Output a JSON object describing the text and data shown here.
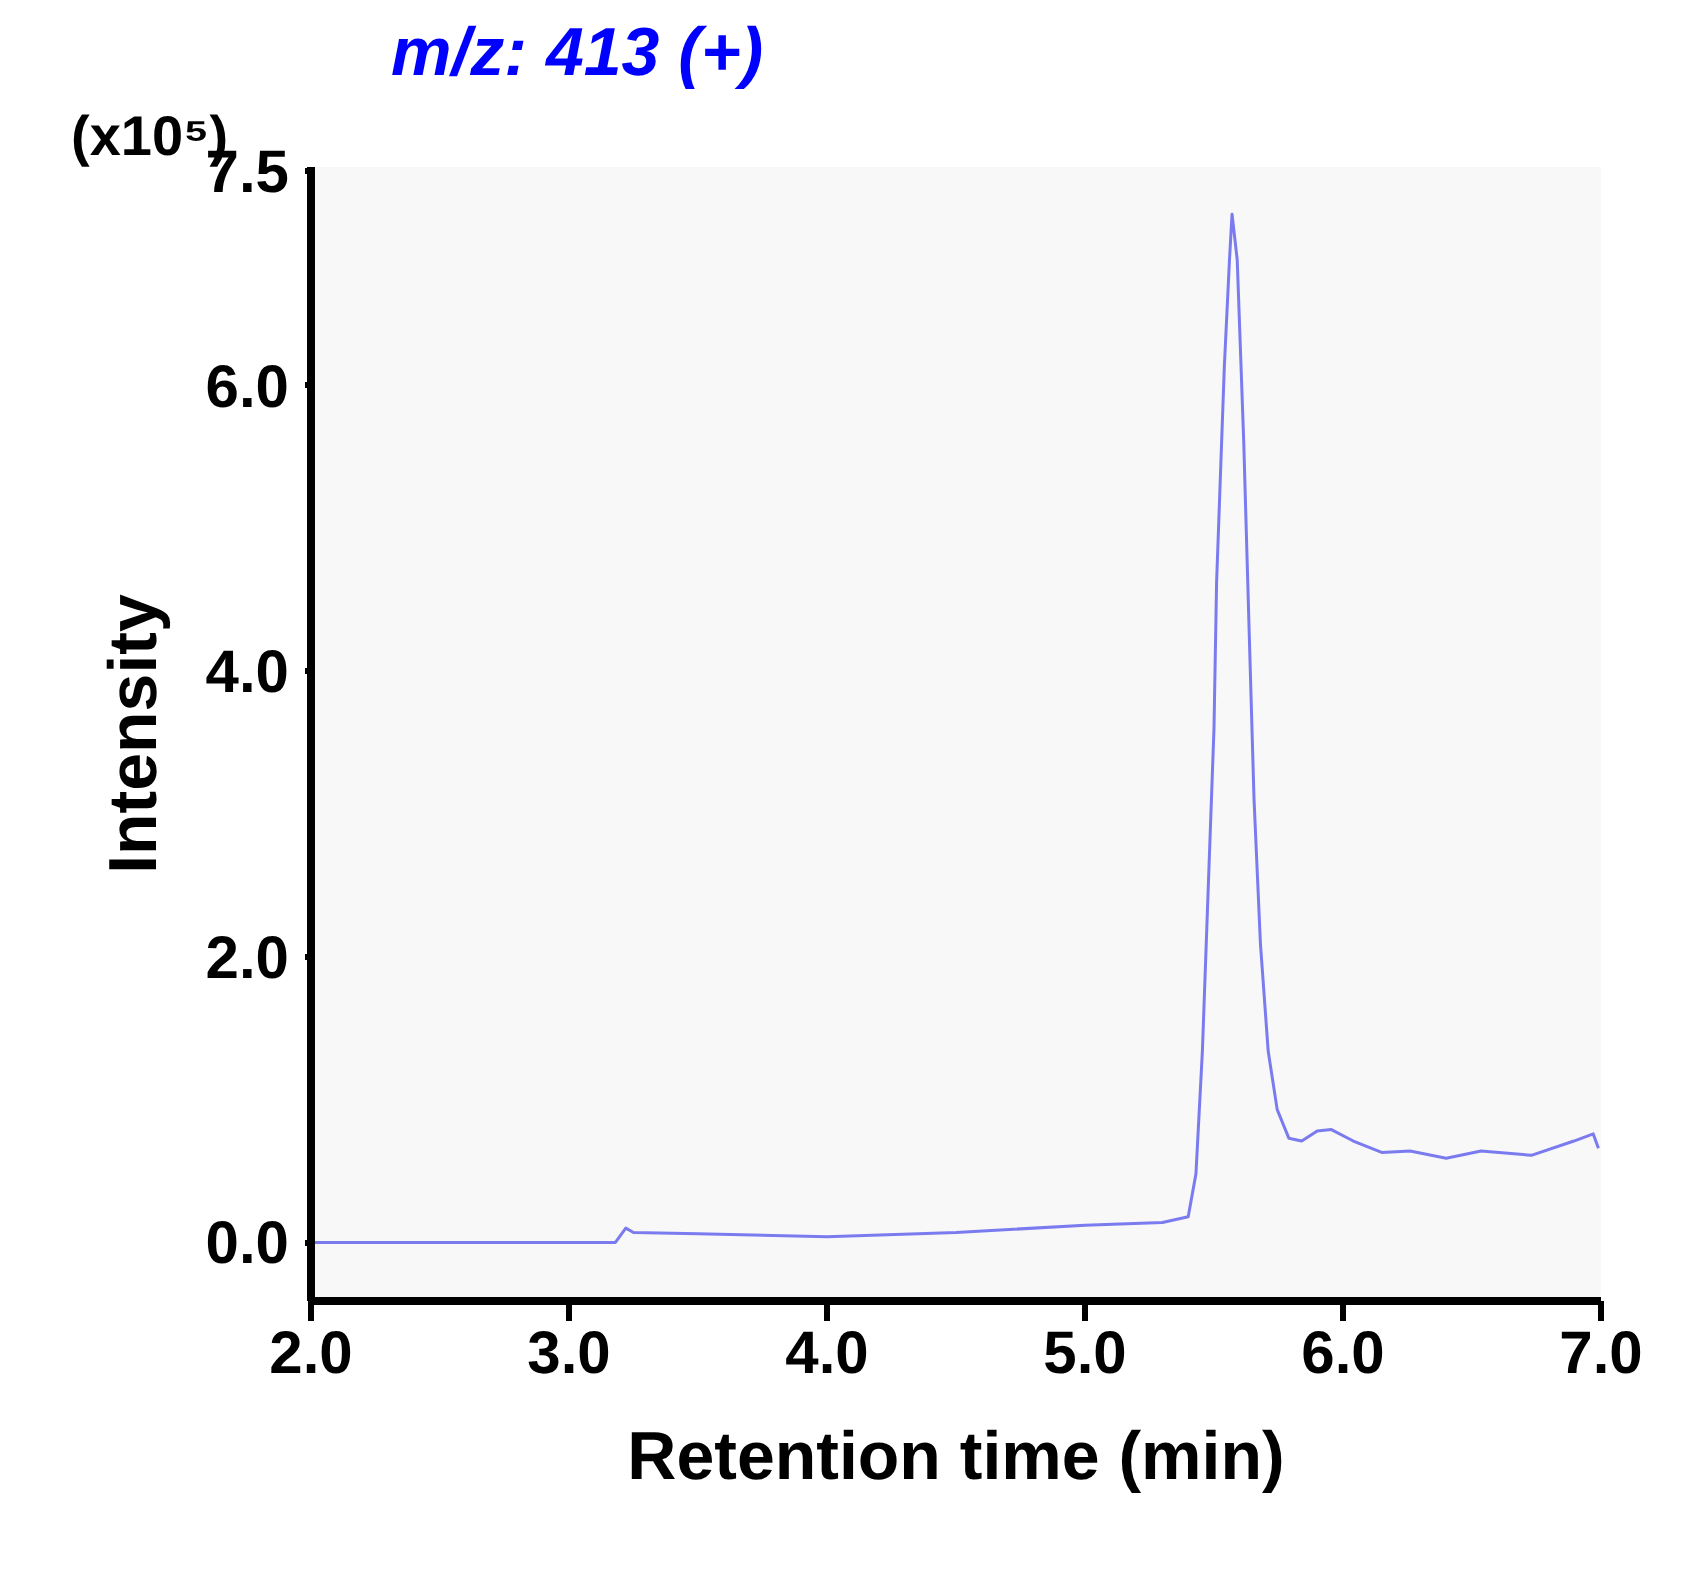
{
  "chart_data": {
    "type": "line",
    "title": "m/z: 413 (+)",
    "xlabel": "Retention time (min)",
    "ylabel": "Intensity",
    "annotations": [
      "(x10⁵)"
    ],
    "xlim": [
      2.0,
      7.0
    ],
    "xticks": [
      {
        "value": 2,
        "label": "2.0"
      },
      {
        "value": 3,
        "label": "3.0"
      },
      {
        "value": 4,
        "label": "4.0"
      },
      {
        "value": 5,
        "label": "5.0"
      },
      {
        "value": 6,
        "label": "6.0"
      },
      {
        "value": 7,
        "label": "7.0"
      }
    ],
    "ylim": [
      -0.41,
      7.53
    ],
    "yticks": [
      {
        "value": 0,
        "label": "0.0"
      },
      {
        "value": 2,
        "label": "2.0"
      },
      {
        "value": 4,
        "label": "4.0"
      },
      {
        "value": 6,
        "label": "6.0"
      },
      7.5
    ],
    "grid": false,
    "marker": "none",
    "line_style": "solid",
    "series": [
      {
        "color": "#7b7bf0",
        "x": [
          2.0,
          2.5,
          3.0,
          3.18,
          3.22,
          3.25,
          3.5,
          4.0,
          4.5,
          5.0,
          5.3,
          5.4,
          5.43,
          5.455,
          5.48,
          5.5,
          5.51,
          5.54,
          5.56,
          5.57,
          5.59,
          5.615,
          5.635,
          5.655,
          5.68,
          5.71,
          5.745,
          5.79,
          5.84,
          5.9,
          5.955,
          6.04,
          6.15,
          6.26,
          6.4,
          6.535,
          6.73,
          6.895,
          6.97,
          6.99
        ],
        "values": [
          0.0,
          0.0,
          0.0,
          0.0,
          0.1,
          0.07,
          0.06,
          0.04,
          0.07,
          0.12,
          0.14,
          0.18,
          0.48,
          1.34,
          2.6,
          3.6,
          4.62,
          6.13,
          6.88,
          7.2,
          6.88,
          5.62,
          4.36,
          3.11,
          2.09,
          1.34,
          0.93,
          0.73,
          0.71,
          0.78,
          0.79,
          0.71,
          0.63,
          0.64,
          0.59,
          0.64,
          0.61,
          0.71,
          0.76,
          0.66
        ]
      }
    ]
  }
}
